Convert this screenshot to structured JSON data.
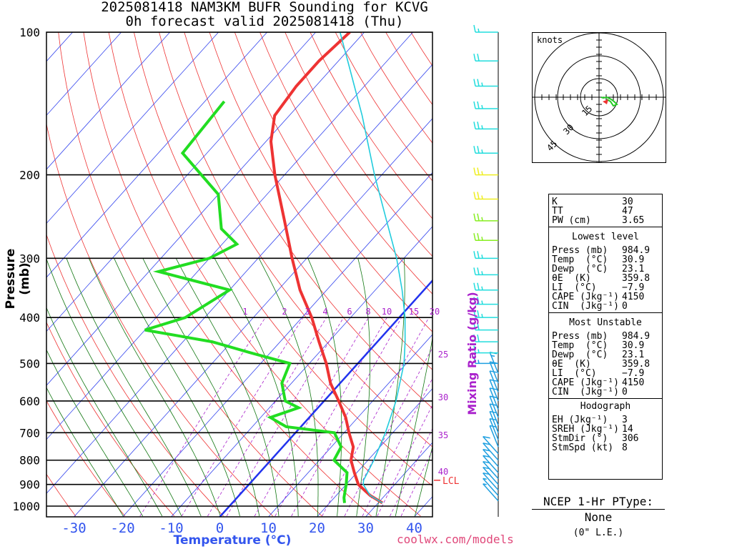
{
  "title_line1": "2025081418 NAM3KM BUFR Sounding for KCVG",
  "title_line2": "0h forecast valid 2025081418 (Thu)",
  "credit": "coolwx.com/models",
  "colors": {
    "temp": "#ee3333",
    "dewp": "#22dd22",
    "parcel": "#22ccdd",
    "isotherm": "#3344ee",
    "mixing": "#aa22cc",
    "zero_isotherm": "#2233ee"
  },
  "chart_data": {
    "type": "line",
    "title": "2025081418 NAM3KM BUFR Sounding for KCVG",
    "subtitle": "0h forecast valid 2025081418 (Thu)",
    "xlabel": "Temperature (°C)",
    "ylabel": "Pressure (mb)",
    "right_label": "Mixing Ratio (g/kg)",
    "x_ticks": [
      "-30",
      "-20",
      "-10",
      "0",
      "10",
      "20",
      "30",
      "40"
    ],
    "y_ticks": [
      "100",
      "200",
      "300",
      "400",
      "500",
      "600",
      "700",
      "800",
      "900",
      "1000"
    ],
    "pressure_range": [
      100,
      1050
    ],
    "mixing_ratio_labels": [
      "1",
      "2",
      "3",
      "4",
      "6",
      "8",
      "10",
      "15",
      "20",
      "25",
      "30",
      "35",
      "40"
    ],
    "lcl_label": "LCL",
    "lcl_pressure": 882,
    "series": [
      {
        "key": "temp",
        "points": [
          [
            985,
            30.9
          ],
          [
            950,
            27
          ],
          [
            900,
            22.5
          ],
          [
            850,
            19.5
          ],
          [
            800,
            16.5
          ],
          [
            750,
            14.5
          ],
          [
            700,
            11
          ],
          [
            650,
            7.5
          ],
          [
            600,
            3
          ],
          [
            550,
            -2
          ],
          [
            500,
            -6.5
          ],
          [
            450,
            -12
          ],
          [
            400,
            -18
          ],
          [
            350,
            -25.5
          ],
          [
            300,
            -33
          ],
          [
            250,
            -41.5
          ],
          [
            200,
            -52
          ],
          [
            170,
            -59
          ],
          [
            150,
            -63
          ],
          [
            130,
            -64
          ],
          [
            115,
            -64
          ],
          [
            100,
            -63
          ]
        ]
      },
      {
        "key": "dewp",
        "points": [
          [
            985,
            23.1
          ],
          [
            960,
            22
          ],
          [
            900,
            20
          ],
          [
            850,
            18
          ],
          [
            800,
            13
          ],
          [
            750,
            12
          ],
          [
            700,
            8
          ],
          [
            680,
            -3
          ],
          [
            650,
            -8
          ],
          [
            620,
            -4
          ],
          [
            600,
            -8
          ],
          [
            550,
            -12
          ],
          [
            500,
            -14
          ],
          [
            475,
            -24
          ],
          [
            450,
            -34
          ],
          [
            425,
            -50
          ],
          [
            400,
            -44
          ],
          [
            350,
            -40
          ],
          [
            320,
            -58
          ],
          [
            300,
            -50
          ],
          [
            280,
            -47
          ],
          [
            260,
            -53
          ],
          [
            220,
            -60
          ],
          [
            180,
            -75
          ],
          [
            140,
            -76
          ]
        ]
      },
      {
        "key": "parcel",
        "points": [
          [
            985,
            30.9
          ],
          [
            950,
            27
          ],
          [
            900,
            23.5
          ],
          [
            882,
            22.8
          ],
          [
            850,
            22.2
          ],
          [
            800,
            21.2
          ],
          [
            700,
            18.5
          ],
          [
            600,
            14.8
          ],
          [
            500,
            9.5
          ],
          [
            450,
            5.7
          ],
          [
            400,
            1.2
          ],
          [
            350,
            -4.5
          ],
          [
            300,
            -11.5
          ],
          [
            250,
            -20.5
          ],
          [
            200,
            -31.5
          ],
          [
            150,
            -45
          ],
          [
            120,
            -56
          ],
          [
            100,
            -65
          ]
        ]
      }
    ],
    "wind_barbs_kt": [
      {
        "p": 975,
        "speed": 8
      },
      {
        "p": 950,
        "speed": 8
      },
      {
        "p": 925,
        "speed": 10
      },
      {
        "p": 900,
        "speed": 10
      },
      {
        "p": 875,
        "speed": 10
      },
      {
        "p": 850,
        "speed": 10
      },
      {
        "p": 825,
        "speed": 10
      },
      {
        "p": 800,
        "speed": 10
      },
      {
        "p": 775,
        "speed": 10
      },
      {
        "p": 750,
        "speed": 10
      },
      {
        "p": 725,
        "speed": 10
      },
      {
        "p": 700,
        "speed": 10
      },
      {
        "p": 675,
        "speed": 10
      },
      {
        "p": 650,
        "speed": 10
      },
      {
        "p": 625,
        "speed": 10
      },
      {
        "p": 600,
        "speed": 10
      },
      {
        "p": 575,
        "speed": 10
      },
      {
        "p": 550,
        "speed": 10
      },
      {
        "p": 525,
        "speed": 15
      },
      {
        "p": 500,
        "speed": 15
      },
      {
        "p": 475,
        "speed": 15
      },
      {
        "p": 450,
        "speed": 20
      },
      {
        "p": 425,
        "speed": 20
      },
      {
        "p": 400,
        "speed": 25
      },
      {
        "p": 375,
        "speed": 25
      },
      {
        "p": 350,
        "speed": 25
      },
      {
        "p": 325,
        "speed": 25
      },
      {
        "p": 300,
        "speed": 25
      },
      {
        "p": 275,
        "speed": 25
      },
      {
        "p": 250,
        "speed": 25
      },
      {
        "p": 225,
        "speed": 25
      },
      {
        "p": 200,
        "speed": 25
      },
      {
        "p": 180,
        "speed": 25
      },
      {
        "p": 160,
        "speed": 25
      },
      {
        "p": 145,
        "speed": 25
      },
      {
        "p": 130,
        "speed": 25
      },
      {
        "p": 115,
        "speed": 20
      },
      {
        "p": 100,
        "speed": 15
      }
    ]
  },
  "hodograph": {
    "units_label": "knots",
    "ring_labels": [
      "15",
      "30",
      "45"
    ]
  },
  "indices": {
    "k_label": "K",
    "k_value": "30",
    "tt_label": "TT",
    "tt_value": "47",
    "pw_label": "PW (cm)",
    "pw_value": "3.65"
  },
  "lowest_level": {
    "title": "Lowest level",
    "rows": [
      {
        "label": "Press (mb)",
        "value": "984.9"
      },
      {
        "label": "Temp  (°C)",
        "value": "30.9"
      },
      {
        "label": "Dewp  (°C)",
        "value": "23.1"
      },
      {
        "label": "θE  (K)",
        "value": "359.8"
      },
      {
        "label": "LI  (°C)",
        "value": "−7.9"
      },
      {
        "label": "CAPE (Jkg⁻¹)",
        "value": "4150"
      },
      {
        "label": "CIN  (Jkg⁻¹)",
        "value": "0"
      }
    ]
  },
  "most_unstable": {
    "title": "Most Unstable",
    "rows": [
      {
        "label": "Press (mb)",
        "value": "984.9"
      },
      {
        "label": "Temp  (°C)",
        "value": "30.9"
      },
      {
        "label": "Dewp  (°C)",
        "value": "23.1"
      },
      {
        "label": "θE  (K)",
        "value": "359.8"
      },
      {
        "label": "LI  (°C)",
        "value": "−7.9"
      },
      {
        "label": "CAPE (Jkg⁻¹)",
        "value": "4150"
      },
      {
        "label": "CIN  (Jkg⁻¹)",
        "value": "0"
      }
    ]
  },
  "hodograph_params": {
    "title": "Hodograph",
    "rows": [
      {
        "label": "EH (Jkg⁻¹)",
        "value": "3"
      },
      {
        "label": "SREH (Jkg⁻¹)",
        "value": "14"
      },
      {
        "label": "StmDir (°)",
        "value": "306"
      },
      {
        "label": "StmSpd (kt)",
        "value": "8"
      }
    ]
  },
  "ptype": {
    "title": "NCEP 1-Hr PType:",
    "value": "None",
    "liquid_equiv": "(0\" L.E.)"
  }
}
